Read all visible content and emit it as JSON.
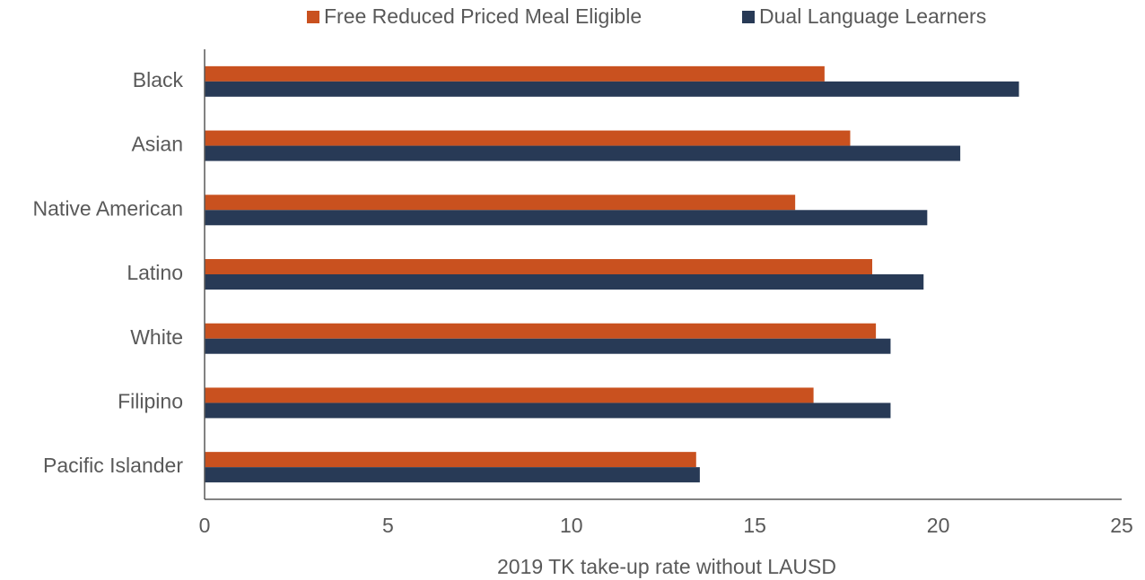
{
  "chart_data": {
    "type": "hbar",
    "x_label": "2019 TK take-up rate without LAUSD",
    "categories": [
      "Black",
      "Asian",
      "Native American",
      "Latino",
      "White",
      "Filipino",
      "Pacific Islander"
    ],
    "series": [
      {
        "name": "Free Reduced Priced Meal Eligible",
        "color": "#c9511f",
        "values": [
          16.9,
          17.6,
          16.1,
          18.2,
          18.3,
          16.6,
          13.4
        ]
      },
      {
        "name": "Dual Language Learners",
        "color": "#283a56",
        "values": [
          22.2,
          20.6,
          19.7,
          19.6,
          18.7,
          18.7,
          13.5
        ]
      }
    ],
    "xlim": [
      0,
      25
    ],
    "xticks": [
      0,
      5,
      10,
      15,
      20,
      25
    ],
    "grid": false
  }
}
